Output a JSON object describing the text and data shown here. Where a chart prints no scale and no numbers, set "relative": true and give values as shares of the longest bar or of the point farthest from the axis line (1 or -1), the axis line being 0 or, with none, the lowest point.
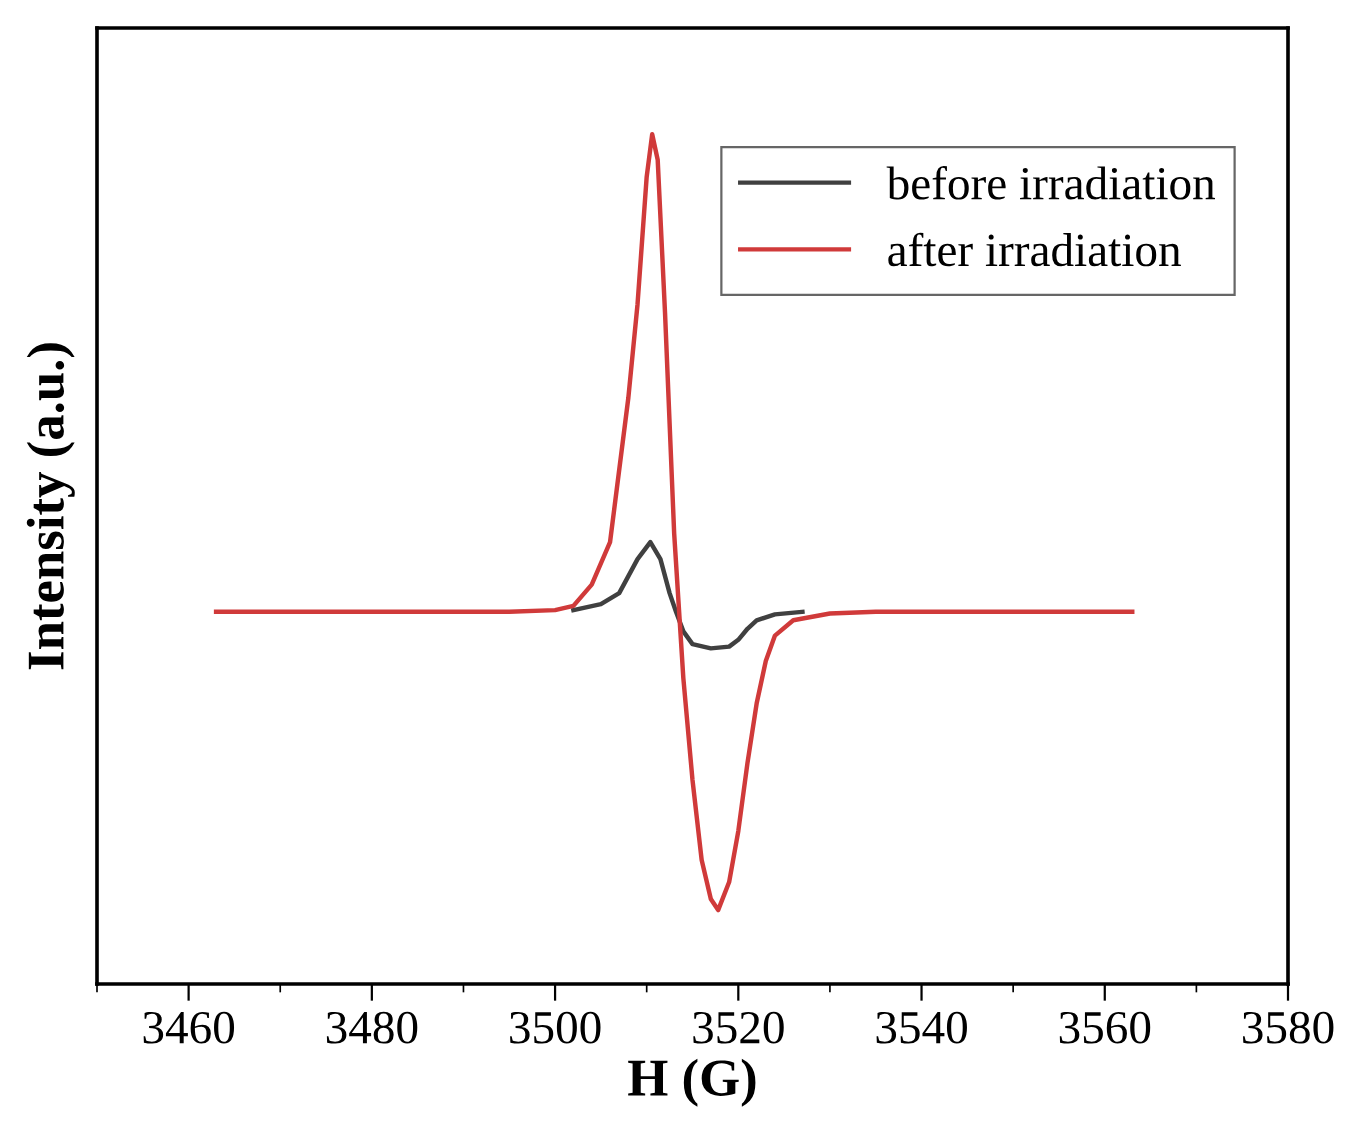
{
  "chart_data": {
    "type": "line",
    "xlabel": "H (G)",
    "ylabel": "Intensity (a.u.)",
    "relative": true,
    "xlim": [
      3450,
      3580
    ],
    "xticks": [
      3460,
      3480,
      3500,
      3520,
      3540,
      3560,
      3580
    ],
    "tick_labels": "x",
    "legend": "top right",
    "grid": false,
    "marker": "none",
    "line_style": "solid",
    "series": [
      {
        "name": "before irradiation",
        "color": "#404040",
        "x": [
          3502,
          3505,
          3507,
          3508,
          3509,
          3510.4,
          3511.5,
          3512.5,
          3513.2,
          3514,
          3515,
          3517,
          3519,
          3520,
          3521,
          3522,
          3524,
          3527
        ],
        "values": [
          0.44,
          0.447,
          0.46,
          0.48,
          0.5,
          0.52,
          0.5,
          0.46,
          0.438,
          0.415,
          0.4,
          0.395,
          0.397,
          0.405,
          0.418,
          0.428,
          0.435,
          0.438
        ]
      },
      {
        "name": "after irradiation",
        "color": "#d03a3a",
        "x": [
          3463,
          3480,
          3495,
          3500,
          3502,
          3504,
          3506,
          3508,
          3509,
          3510,
          3510.6,
          3511.2,
          3512,
          3513,
          3514,
          3515,
          3516,
          3517,
          3517.8,
          3519,
          3520,
          3521,
          3522,
          3523,
          3524,
          3526,
          3530,
          3535,
          3563
        ],
        "values": [
          0.438,
          0.438,
          0.438,
          0.44,
          0.445,
          0.47,
          0.52,
          0.69,
          0.8,
          0.95,
          1.0,
          0.97,
          0.79,
          0.53,
          0.36,
          0.24,
          0.146,
          0.1,
          0.087,
          0.12,
          0.18,
          0.26,
          0.33,
          0.38,
          0.41,
          0.428,
          0.436,
          0.438,
          0.438
        ]
      }
    ]
  }
}
